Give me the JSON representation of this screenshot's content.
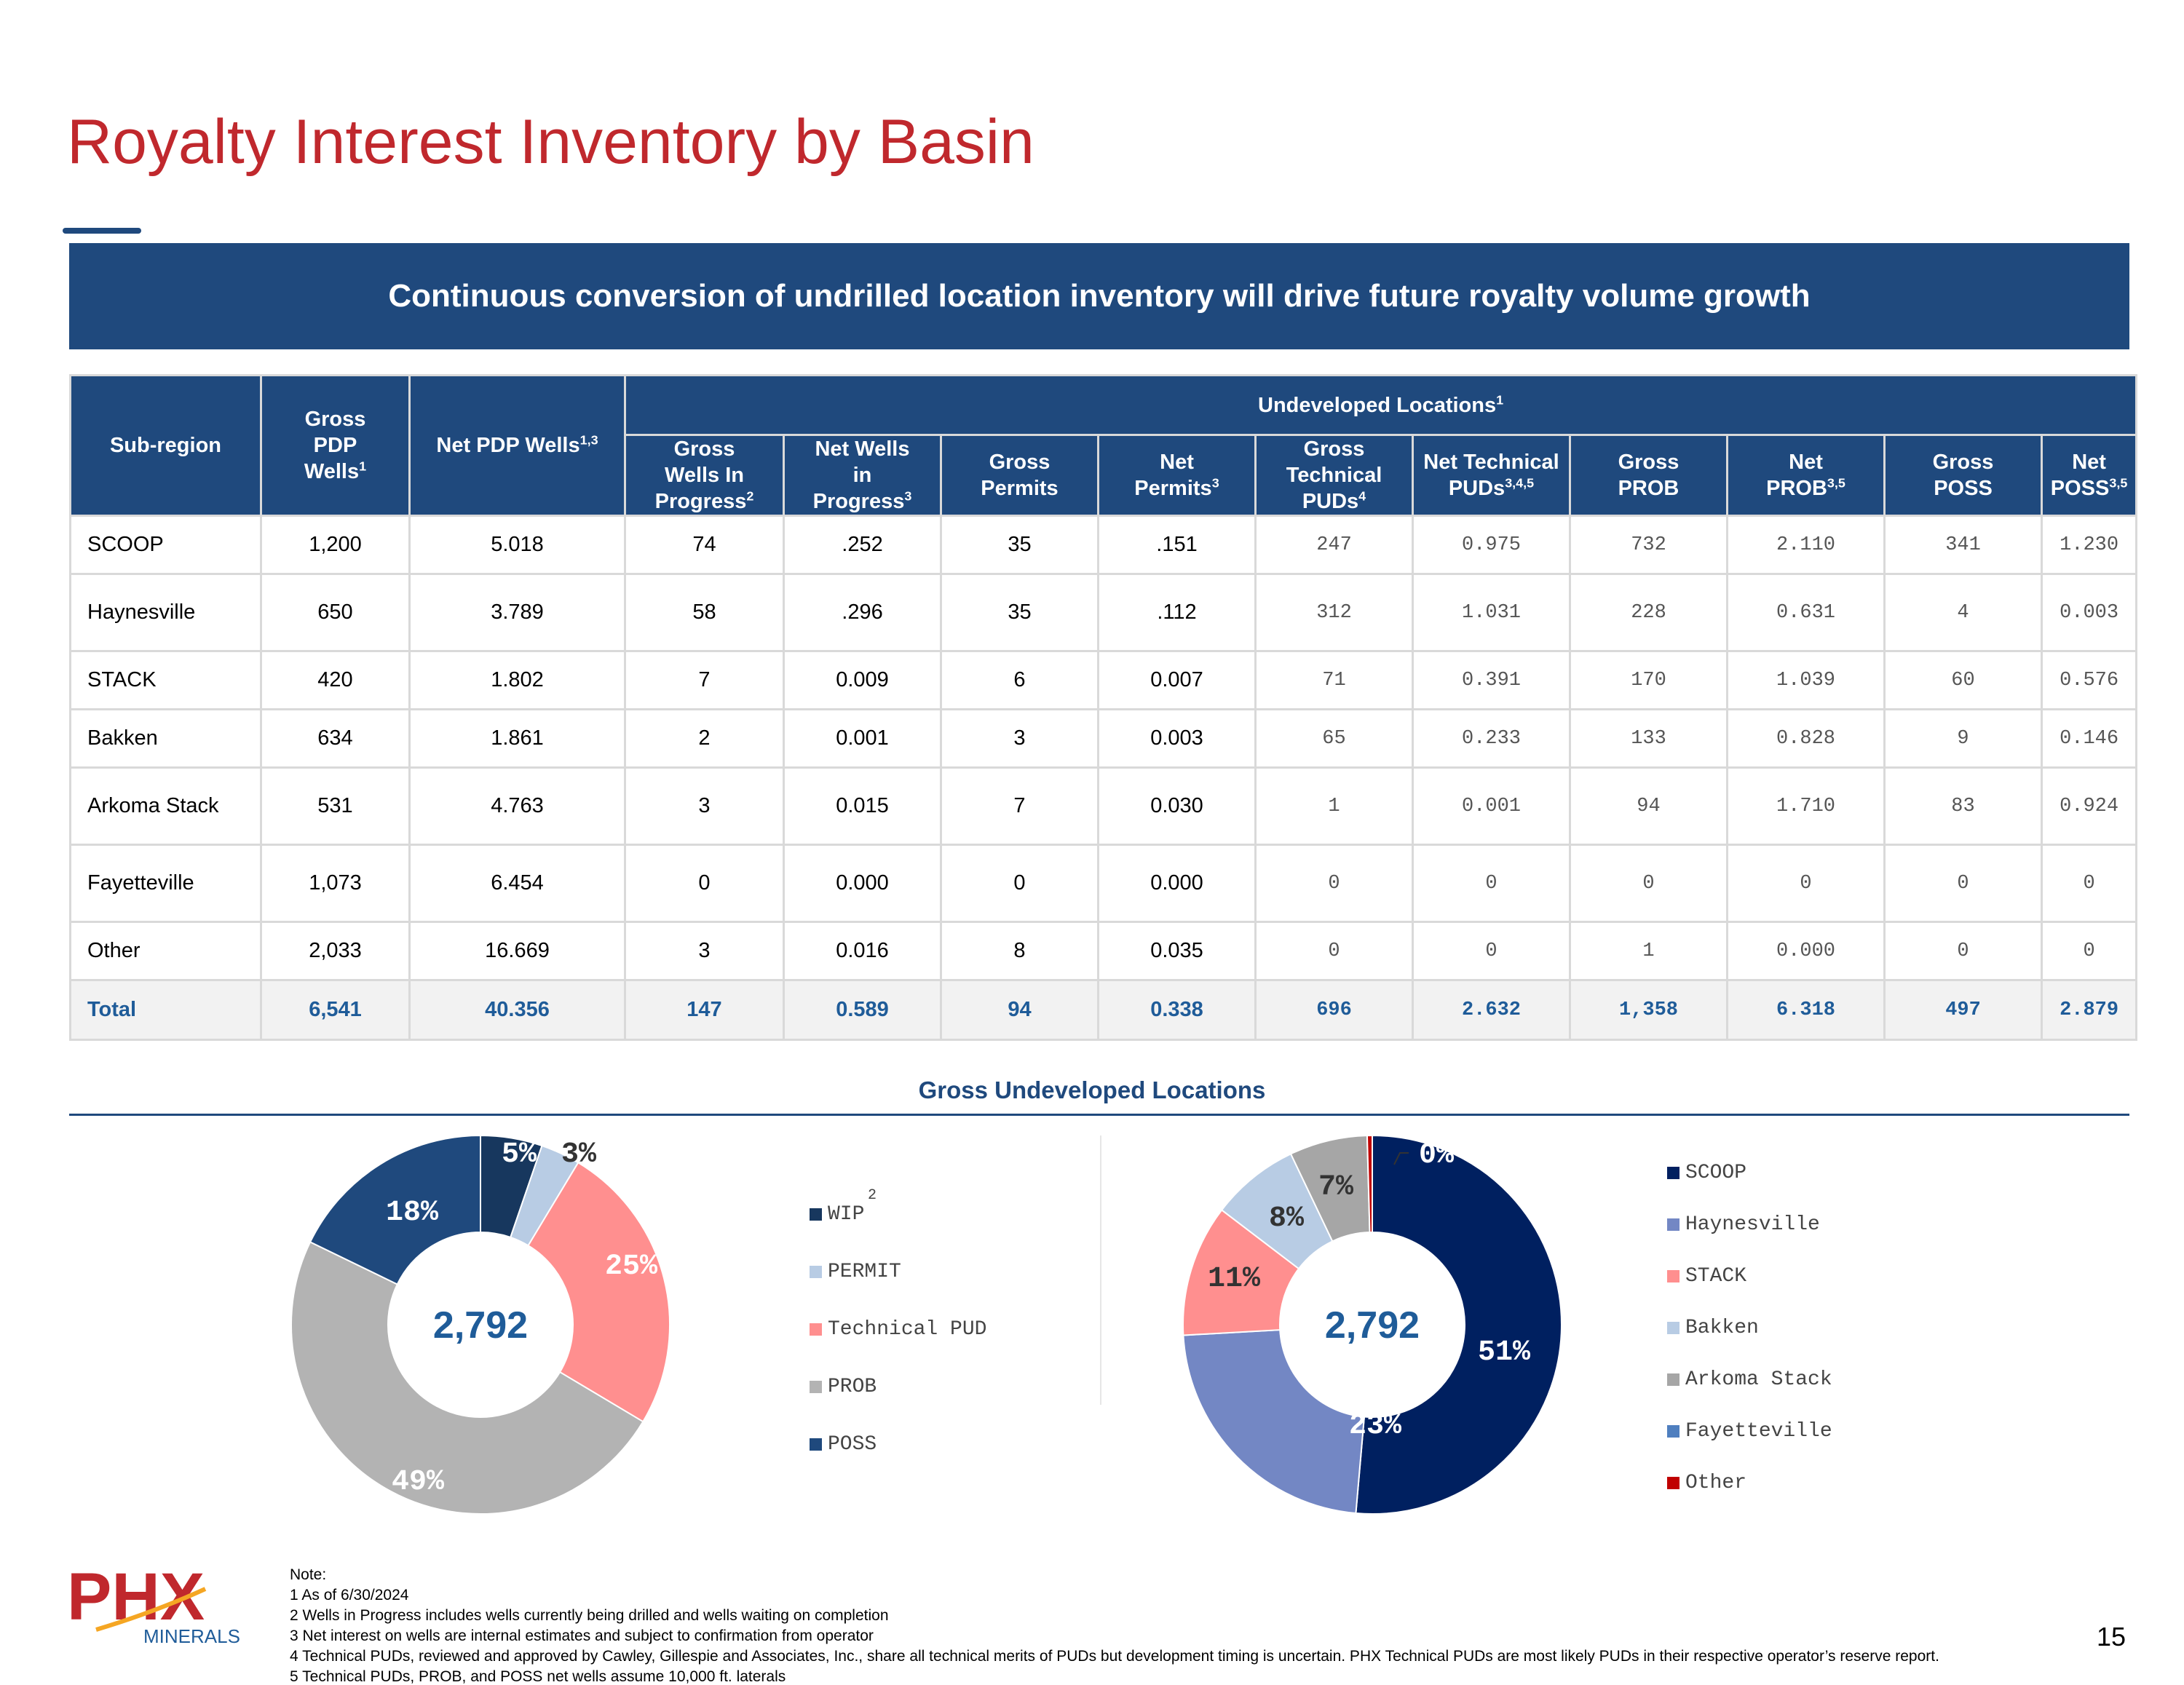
{
  "title": "Royalty Interest Inventory by Basin",
  "banner": "Continuous conversion of undrilled location inventory will drive future royalty volume growth",
  "table": {
    "group_header": {
      "text": "Undeveloped Locations",
      "sup": "1"
    },
    "headers": [
      {
        "text": "Sub-region",
        "sup": ""
      },
      {
        "text": "Gross PDP Wells",
        "sup": "1"
      },
      {
        "text": "Net PDP Wells",
        "sup": "1,3"
      },
      {
        "text": "Gross Wells In Progress",
        "sup": "2"
      },
      {
        "text": "Net Wells in Progress",
        "sup": "3"
      },
      {
        "text": "Gross Permits",
        "sup": ""
      },
      {
        "text": "Net Permits",
        "sup": "3"
      },
      {
        "text": "Gross Technical PUDs",
        "sup": "4"
      },
      {
        "text": "Net Technical PUDs",
        "sup": "3,4,5"
      },
      {
        "text": "Gross PROB",
        "sup": ""
      },
      {
        "text": "Net PROB",
        "sup": "3,5"
      },
      {
        "text": "Gross POSS",
        "sup": ""
      },
      {
        "text": "Net POSS",
        "sup": "3,5"
      }
    ],
    "rows": [
      [
        "SCOOP",
        "1,200",
        "5.018",
        "74",
        ".252",
        "35",
        ".151",
        "247",
        "0.975",
        "732",
        "2.110",
        "341",
        "1.230"
      ],
      [
        "Haynesville",
        "650",
        "3.789",
        "58",
        ".296",
        "35",
        ".112",
        "312",
        "1.031",
        "228",
        "0.631",
        "4",
        "0.003"
      ],
      [
        "STACK",
        "420",
        "1.802",
        "7",
        "0.009",
        "6",
        "0.007",
        "71",
        "0.391",
        "170",
        "1.039",
        "60",
        "0.576"
      ],
      [
        "Bakken",
        "634",
        "1.861",
        "2",
        "0.001",
        "3",
        "0.003",
        "65",
        "0.233",
        "133",
        "0.828",
        "9",
        "0.146"
      ],
      [
        "Arkoma Stack",
        "531",
        "4.763",
        "3",
        "0.015",
        "7",
        "0.030",
        "1",
        "0.001",
        "94",
        "1.710",
        "83",
        "0.924"
      ],
      [
        "Fayetteville",
        "1,073",
        "6.454",
        "0",
        "0.000",
        "0",
        "0.000",
        "0",
        "0",
        "0",
        "0",
        "0",
        "0"
      ],
      [
        "Other",
        "2,033",
        "16.669",
        "3",
        "0.016",
        "8",
        "0.035",
        "0",
        "0",
        "1",
        "0.000",
        "0",
        "0"
      ]
    ],
    "total": [
      "Total",
      "6,541",
      "40.356",
      "147",
      "0.589",
      "94",
      "0.338",
      "696",
      "2.632",
      "1,358",
      "6.318",
      "497",
      "2.879"
    ]
  },
  "pie_section_title": "Gross Undeveloped Locations",
  "colors": {
    "title": "#c0282d",
    "navy": "#1f497d",
    "total_text": "#1f5c99"
  },
  "chart_data": [
    {
      "type": "pie",
      "style": "donut",
      "title": "",
      "center_label": "2,792",
      "categories": [
        "WIP",
        "PERMIT",
        "Technical PUD",
        "PROB",
        "POSS"
      ],
      "values": [
        147,
        94,
        696,
        1358,
        497
      ],
      "labels": [
        "5%",
        "3%",
        "25%",
        "49%",
        "18%"
      ],
      "colors": [
        "#17375e",
        "#b8cce4",
        "#ff8f8f",
        "#b3b3b3",
        "#1f497d"
      ],
      "label_colors": [
        "#ffffff",
        "#333333",
        "#ffffff",
        "#ffffff",
        "#ffffff"
      ],
      "legend_sup": {
        "series": "WIP",
        "text": "2"
      },
      "legend_position": "right"
    },
    {
      "type": "pie",
      "style": "donut",
      "title": "",
      "center_label": "2,792",
      "categories": [
        "SCOOP",
        "Haynesville",
        "STACK",
        "Bakken",
        "Arkoma Stack",
        "Fayetteville",
        "Other"
      ],
      "values": [
        1429,
        632,
        313,
        210,
        185,
        0,
        12
      ],
      "labels": [
        "51%",
        "23%",
        "11%",
        "8%",
        "7%",
        "",
        "0%"
      ],
      "colors": [
        "#002060",
        "#7387c4",
        "#ff8f8f",
        "#b8cce4",
        "#a6a6a6",
        "#4f7fbf",
        "#c00000"
      ],
      "label_colors": [
        "#ffffff",
        "#ffffff",
        "#333333",
        "#333333",
        "#333333",
        "#ffffff",
        "#ffffff"
      ],
      "legend_position": "right"
    }
  ],
  "logo": {
    "word": "PHX",
    "sub": "MINERALS"
  },
  "notes": [
    "Note:",
    "1 As of 6/30/2024",
    "2 Wells in Progress includes wells currently being drilled and wells waiting on completion",
    "3 Net interest on wells are internal estimates and subject to confirmation from operator",
    "4 Technical PUDs, reviewed and approved by Cawley, Gillespie and Associates, Inc., share all technical merits of PUDs but development timing is uncertain. PHX Technical PUDs are most likely PUDs in their respective operator’s reserve report.",
    "5 Technical PUDs, PROB, and POSS net wells assume 10,000 ft. laterals"
  ],
  "page_number": "15"
}
